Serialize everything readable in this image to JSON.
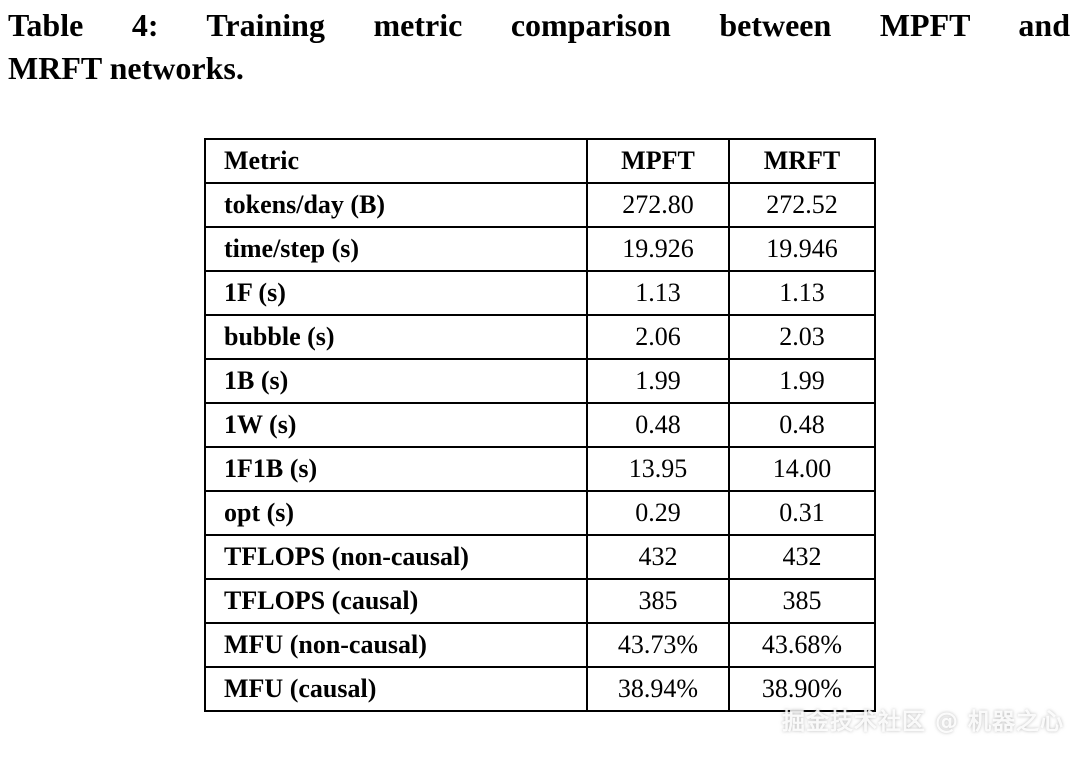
{
  "caption": {
    "line1": "Table 4: Training metric comparison between MPFT and",
    "line2": "MRFT networks."
  },
  "table": {
    "headers": {
      "metric": "Metric",
      "mpft": "MPFT",
      "mrft": "MRFT"
    },
    "rows": [
      {
        "metric": "tokens/day (B)",
        "mpft": "272.80",
        "mrft": "272.52"
      },
      {
        "metric": "time/step (s)",
        "mpft": "19.926",
        "mrft": "19.946"
      },
      {
        "metric": "1F (s)",
        "mpft": "1.13",
        "mrft": "1.13"
      },
      {
        "metric": "bubble (s)",
        "mpft": "2.06",
        "mrft": "2.03"
      },
      {
        "metric": "1B (s)",
        "mpft": "1.99",
        "mrft": "1.99"
      },
      {
        "metric": "1W (s)",
        "mpft": "0.48",
        "mrft": "0.48"
      },
      {
        "metric": "1F1B (s)",
        "mpft": "13.95",
        "mrft": "14.00"
      },
      {
        "metric": "opt (s)",
        "mpft": "0.29",
        "mrft": "0.31"
      },
      {
        "metric": "TFLOPS (non-causal)",
        "mpft": "432",
        "mrft": "432"
      },
      {
        "metric": "TFLOPS (causal)",
        "mpft": "385",
        "mrft": "385"
      },
      {
        "metric": "MFU (non-causal)",
        "mpft": "43.73%",
        "mrft": "43.68%"
      },
      {
        "metric": "MFU (causal)",
        "mpft": "38.94%",
        "mrft": "38.90%"
      }
    ]
  },
  "watermark": {
    "text": "掘金技术社区 @ 机器之心"
  },
  "colors": {
    "background": "#ffffff",
    "text": "#000000",
    "table_border": "#000000"
  },
  "chart_data": {
    "type": "table",
    "title": "Table 4: Training metric comparison between MPFT and MRFT networks.",
    "columns": [
      "Metric",
      "MPFT",
      "MRFT"
    ],
    "rows": [
      [
        "tokens/day (B)",
        "272.80",
        "272.52"
      ],
      [
        "time/step (s)",
        "19.926",
        "19.946"
      ],
      [
        "1F (s)",
        "1.13",
        "1.13"
      ],
      [
        "bubble (s)",
        "2.06",
        "2.03"
      ],
      [
        "1B (s)",
        "1.99",
        "1.99"
      ],
      [
        "1W (s)",
        "0.48",
        "0.48"
      ],
      [
        "1F1B (s)",
        "13.95",
        "14.00"
      ],
      [
        "opt (s)",
        "0.29",
        "0.31"
      ],
      [
        "TFLOPS (non-causal)",
        "432",
        "432"
      ],
      [
        "TFLOPS (causal)",
        "385",
        "385"
      ],
      [
        "MFU (non-causal)",
        "43.73%",
        "43.68%"
      ],
      [
        "MFU (causal)",
        "38.94%",
        "38.90%"
      ]
    ]
  }
}
